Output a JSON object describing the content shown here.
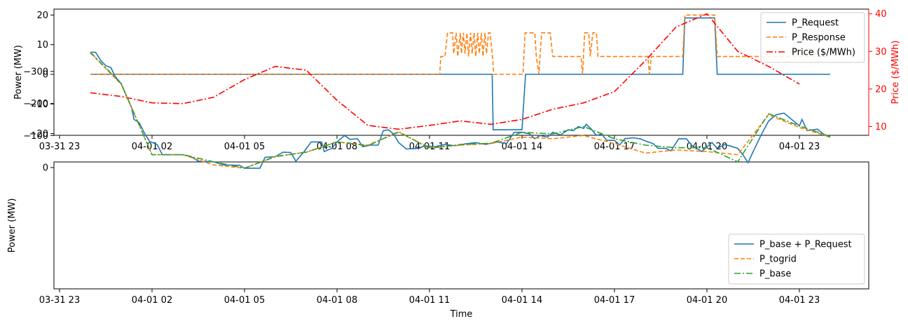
{
  "chart_data": [
    {
      "type": "line",
      "ylabel": "Power (MW)",
      "y2label": "Price ($/MWh)",
      "xlabel": "",
      "xlim": [
        "2021-03-31T23:00",
        "2021-04-01T24:00"
      ],
      "ylim": [
        -21,
        21
      ],
      "y2lim": [
        7.5,
        41.5
      ],
      "x_ticks": [
        "03-31 23",
        "04-01 02",
        "04-01 05",
        "04-01 08",
        "04-01 11",
        "04-01 14",
        "04-01 17",
        "04-01 20",
        "04-01 23"
      ],
      "y_ticks": [
        20,
        10,
        0,
        -10,
        -20
      ],
      "y2_ticks": [
        40,
        30,
        20,
        10
      ],
      "legend": "top-right",
      "series": [
        {
          "name": "P_Request",
          "axis": "left",
          "color": "#1f77b4",
          "dash": "solid",
          "points": [
            [
              "00:00",
              0
            ],
            [
              "13:02",
              0
            ],
            [
              "13:04",
              -18.7
            ],
            [
              "14:00",
              -18.7
            ],
            [
              "14:07",
              0
            ],
            [
              "19:13",
              0
            ],
            [
              "19:17",
              19
            ],
            [
              "20:15",
              19
            ],
            [
              "20:20",
              0
            ],
            [
              "24:00",
              0
            ]
          ]
        },
        {
          "name": "P_Response",
          "axis": "left",
          "color": "#ff7f0e",
          "dash": "dashed",
          "points": [
            [
              "00:00",
              0
            ],
            [
              "11:20",
              0
            ],
            [
              "11:22",
              6
            ],
            [
              "11:30",
              6
            ],
            [
              "11:35",
              14
            ],
            [
              "11:45",
              14
            ],
            [
              "11:47",
              7
            ],
            [
              "11:52",
              14
            ],
            [
              "11:55",
              6
            ],
            [
              "12:00",
              14
            ],
            [
              "12:02",
              7
            ],
            [
              "12:06",
              14
            ],
            [
              "12:09",
              7
            ],
            [
              "12:13",
              14
            ],
            [
              "12:16",
              6
            ],
            [
              "12:20",
              14
            ],
            [
              "12:23",
              7
            ],
            [
              "12:27",
              14
            ],
            [
              "12:30",
              6
            ],
            [
              "12:34",
              14
            ],
            [
              "12:37",
              7
            ],
            [
              "12:41",
              14
            ],
            [
              "12:44",
              6
            ],
            [
              "12:48",
              14
            ],
            [
              "12:51",
              7
            ],
            [
              "12:55",
              14
            ],
            [
              "12:58",
              14
            ],
            [
              "13:02",
              7
            ],
            [
              "13:05",
              0
            ],
            [
              "14:02",
              0
            ],
            [
              "14:06",
              14
            ],
            [
              "14:25",
              14
            ],
            [
              "14:28",
              6
            ],
            [
              "14:33",
              0
            ],
            [
              "14:38",
              14
            ],
            [
              "14:55",
              14
            ],
            [
              "15:00",
              6
            ],
            [
              "15:55",
              6
            ],
            [
              "15:58",
              0
            ],
            [
              "16:02",
              14
            ],
            [
              "16:10",
              14
            ],
            [
              "16:13",
              6
            ],
            [
              "16:18",
              14
            ],
            [
              "16:25",
              14
            ],
            [
              "16:28",
              6
            ],
            [
              "18:05",
              6
            ],
            [
              "18:08",
              0
            ],
            [
              "18:12",
              6
            ],
            [
              "19:13",
              6
            ],
            [
              "19:17",
              20
            ],
            [
              "20:15",
              20
            ],
            [
              "20:20",
              6
            ],
            [
              "24:00",
              6
            ]
          ]
        },
        {
          "name": "Price ($/MWh)",
          "axis": "right",
          "color": "#ff0000",
          "dash": "dashdot",
          "points": [
            [
              "00:00",
              19
            ],
            [
              "01:00",
              18
            ],
            [
              "02:00",
              16.3
            ],
            [
              "03:00",
              16.1
            ],
            [
              "04:00",
              17.8
            ],
            [
              "05:00",
              22.5
            ],
            [
              "06:00",
              26
            ],
            [
              "07:00",
              25
            ],
            [
              "08:00",
              17
            ],
            [
              "09:00",
              10.3
            ],
            [
              "10:00",
              9.3
            ],
            [
              "11:00",
              10.3
            ],
            [
              "12:00",
              11.5
            ],
            [
              "13:00",
              10.6
            ],
            [
              "14:00",
              11.9
            ],
            [
              "15:00",
              14.6
            ],
            [
              "16:00",
              16.3
            ],
            [
              "17:00",
              19.3
            ],
            [
              "18:00",
              27.5
            ],
            [
              "19:00",
              36.5
            ],
            [
              "20:00",
              40
            ],
            [
              "21:00",
              30
            ],
            [
              "22:00",
              26
            ],
            [
              "23:00",
              21.3
            ]
          ]
        }
      ]
    },
    {
      "type": "line",
      "ylabel": "Power (MW)",
      "xlabel": "Time",
      "xlim": [
        "2021-03-31T23:00",
        "2021-04-01T24:00"
      ],
      "ylim": [
        -370,
        10
      ],
      "x_ticks": [
        "03-31 23",
        "04-01 02",
        "04-01 05",
        "04-01 08",
        "04-01 11",
        "04-01 14",
        "04-01 17",
        "04-01 20",
        "04-01 23"
      ],
      "y_ticks": [
        0,
        -100,
        -200,
        -300
      ],
      "legend": "bottom-right",
      "series": [
        {
          "name": "P_base + P_Request",
          "color": "#1f77b4",
          "dash": "solid",
          "points": [
            [
              "00:00",
              -360
            ],
            [
              "00:10",
              -360
            ],
            [
              "00:20",
              -335
            ],
            [
              "00:30",
              -318
            ],
            [
              "00:40",
              -312
            ],
            [
              "00:48",
              -285
            ],
            [
              "01:00",
              -262
            ],
            [
              "01:10",
              -225
            ],
            [
              "01:20",
              -188
            ],
            [
              "01:25",
              -150
            ],
            [
              "01:35",
              -140
            ],
            [
              "01:45",
              -108
            ],
            [
              "01:55",
              -82
            ],
            [
              "02:10",
              -72
            ],
            [
              "02:20",
              -40
            ],
            [
              "03:00",
              -40
            ],
            [
              "03:15",
              -35
            ],
            [
              "03:30",
              -20
            ],
            [
              "04:00",
              -18
            ],
            [
              "04:20",
              -8
            ],
            [
              "04:50",
              -7
            ],
            [
              "05:00",
              2
            ],
            [
              "05:30",
              2
            ],
            [
              "05:40",
              -32
            ],
            [
              "06:00",
              -34
            ],
            [
              "06:15",
              -48
            ],
            [
              "06:30",
              -47
            ],
            [
              "06:40",
              -20
            ],
            [
              "06:55",
              -48
            ],
            [
              "07:10",
              -80
            ],
            [
              "07:30",
              -80
            ],
            [
              "07:35",
              -50
            ],
            [
              "07:50",
              -60
            ],
            [
              "08:00",
              -80
            ],
            [
              "08:15",
              -100
            ],
            [
              "08:25",
              -88
            ],
            [
              "08:40",
              -90
            ],
            [
              "08:50",
              -65
            ],
            [
              "09:05",
              -70
            ],
            [
              "09:20",
              -70
            ],
            [
              "09:30",
              -115
            ],
            [
              "09:40",
              -118
            ],
            [
              "09:50",
              -105
            ],
            [
              "10:00",
              -78
            ],
            [
              "10:15",
              -58
            ],
            [
              "10:40",
              -60
            ],
            [
              "10:50",
              -68
            ],
            [
              "11:10",
              -65
            ],
            [
              "11:30",
              -72
            ],
            [
              "11:50",
              -68
            ],
            [
              "12:10",
              -74
            ],
            [
              "12:30",
              -78
            ],
            [
              "12:50",
              -72
            ],
            [
              "13:10",
              -80
            ],
            [
              "13:30",
              -75
            ],
            [
              "13:45",
              -110
            ],
            [
              "14:00",
              -110
            ],
            [
              "14:15",
              -105
            ],
            [
              "14:25",
              -90
            ],
            [
              "14:35",
              -100
            ],
            [
              "14:50",
              -95
            ],
            [
              "15:00",
              -110
            ],
            [
              "15:15",
              -102
            ],
            [
              "15:30",
              -118
            ],
            [
              "15:40",
              -115
            ],
            [
              "15:50",
              -128
            ],
            [
              "16:00",
              -122
            ],
            [
              "16:05",
              -135
            ],
            [
              "16:15",
              -120
            ],
            [
              "16:25",
              -100
            ],
            [
              "16:35",
              -105
            ],
            [
              "16:45",
              -85
            ],
            [
              "17:00",
              -85
            ],
            [
              "17:10",
              -70
            ],
            [
              "17:20",
              -90
            ],
            [
              "17:35",
              -93
            ],
            [
              "17:50",
              -90
            ],
            [
              "18:05",
              -80
            ],
            [
              "18:15",
              -75
            ],
            [
              "18:25",
              -60
            ],
            [
              "18:40",
              -60
            ],
            [
              "18:50",
              -52
            ],
            [
              "19:05",
              -90
            ],
            [
              "19:20",
              -90
            ],
            [
              "19:30",
              -70
            ],
            [
              "19:50",
              -50
            ],
            [
              "20:00",
              -65
            ],
            [
              "20:10",
              -78
            ],
            [
              "20:20",
              -60
            ],
            [
              "20:35",
              -72
            ],
            [
              "20:50",
              -65
            ],
            [
              "21:00",
              -60
            ],
            [
              "21:10",
              -40
            ],
            [
              "21:20",
              -15
            ],
            [
              "21:30",
              -50
            ],
            [
              "21:45",
              -100
            ],
            [
              "22:00",
              -145
            ],
            [
              "22:15",
              -165
            ],
            [
              "22:30",
              -170
            ],
            [
              "22:45",
              -150
            ],
            [
              "23:00",
              -130
            ],
            [
              "23:05",
              -150
            ],
            [
              "23:15",
              -115
            ],
            [
              "23:35",
              -120
            ],
            [
              "23:50",
              -100
            ],
            [
              "24:00",
              -95
            ]
          ]
        },
        {
          "name": "P_togrid",
          "color": "#ff7f0e",
          "dash": "dashed",
          "points": [
            [
              "00:00",
              -358
            ],
            [
              "01:00",
              -260
            ],
            [
              "02:00",
              -40
            ],
            [
              "03:00",
              -40
            ],
            [
              "04:00",
              -8
            ],
            [
              "05:00",
              2
            ],
            [
              "06:00",
              -35
            ],
            [
              "07:00",
              -48
            ],
            [
              "08:00",
              -80
            ],
            [
              "09:00",
              -70
            ],
            [
              "10:00",
              -110
            ],
            [
              "11:00",
              -62
            ],
            [
              "12:00",
              -70
            ],
            [
              "13:00",
              -75
            ],
            [
              "14:00",
              -95
            ],
            [
              "15:00",
              -90
            ],
            [
              "16:00",
              -100
            ],
            [
              "17:00",
              -75
            ],
            [
              "18:00",
              -45
            ],
            [
              "19:00",
              -55
            ],
            [
              "20:00",
              -50
            ],
            [
              "21:00",
              -40
            ],
            [
              "22:00",
              -165
            ],
            [
              "23:00",
              -125
            ],
            [
              "24:00",
              -95
            ]
          ]
        },
        {
          "name": "P_base",
          "color": "#2ca02c",
          "dash": "dashdot",
          "points": [
            [
              "00:00",
              -360
            ],
            [
              "01:00",
              -262
            ],
            [
              "02:00",
              -40
            ],
            [
              "03:00",
              -40
            ],
            [
              "04:00",
              -18
            ],
            [
              "05:00",
              2
            ],
            [
              "06:00",
              -34
            ],
            [
              "07:00",
              -48
            ],
            [
              "08:00",
              -80
            ],
            [
              "09:00",
              -68
            ],
            [
              "10:00",
              -112
            ],
            [
              "11:00",
              -60
            ],
            [
              "12:00",
              -72
            ],
            [
              "13:00",
              -76
            ],
            [
              "14:00",
              -110
            ],
            [
              "15:00",
              -105
            ],
            [
              "16:00",
              -128
            ],
            [
              "17:00",
              -90
            ],
            [
              "18:00",
              -70
            ],
            [
              "19:00",
              -62
            ],
            [
              "20:00",
              -62
            ],
            [
              "21:00",
              -18
            ],
            [
              "22:00",
              -168
            ],
            [
              "23:00",
              -130
            ],
            [
              "24:00",
              -97
            ]
          ]
        }
      ]
    }
  ]
}
